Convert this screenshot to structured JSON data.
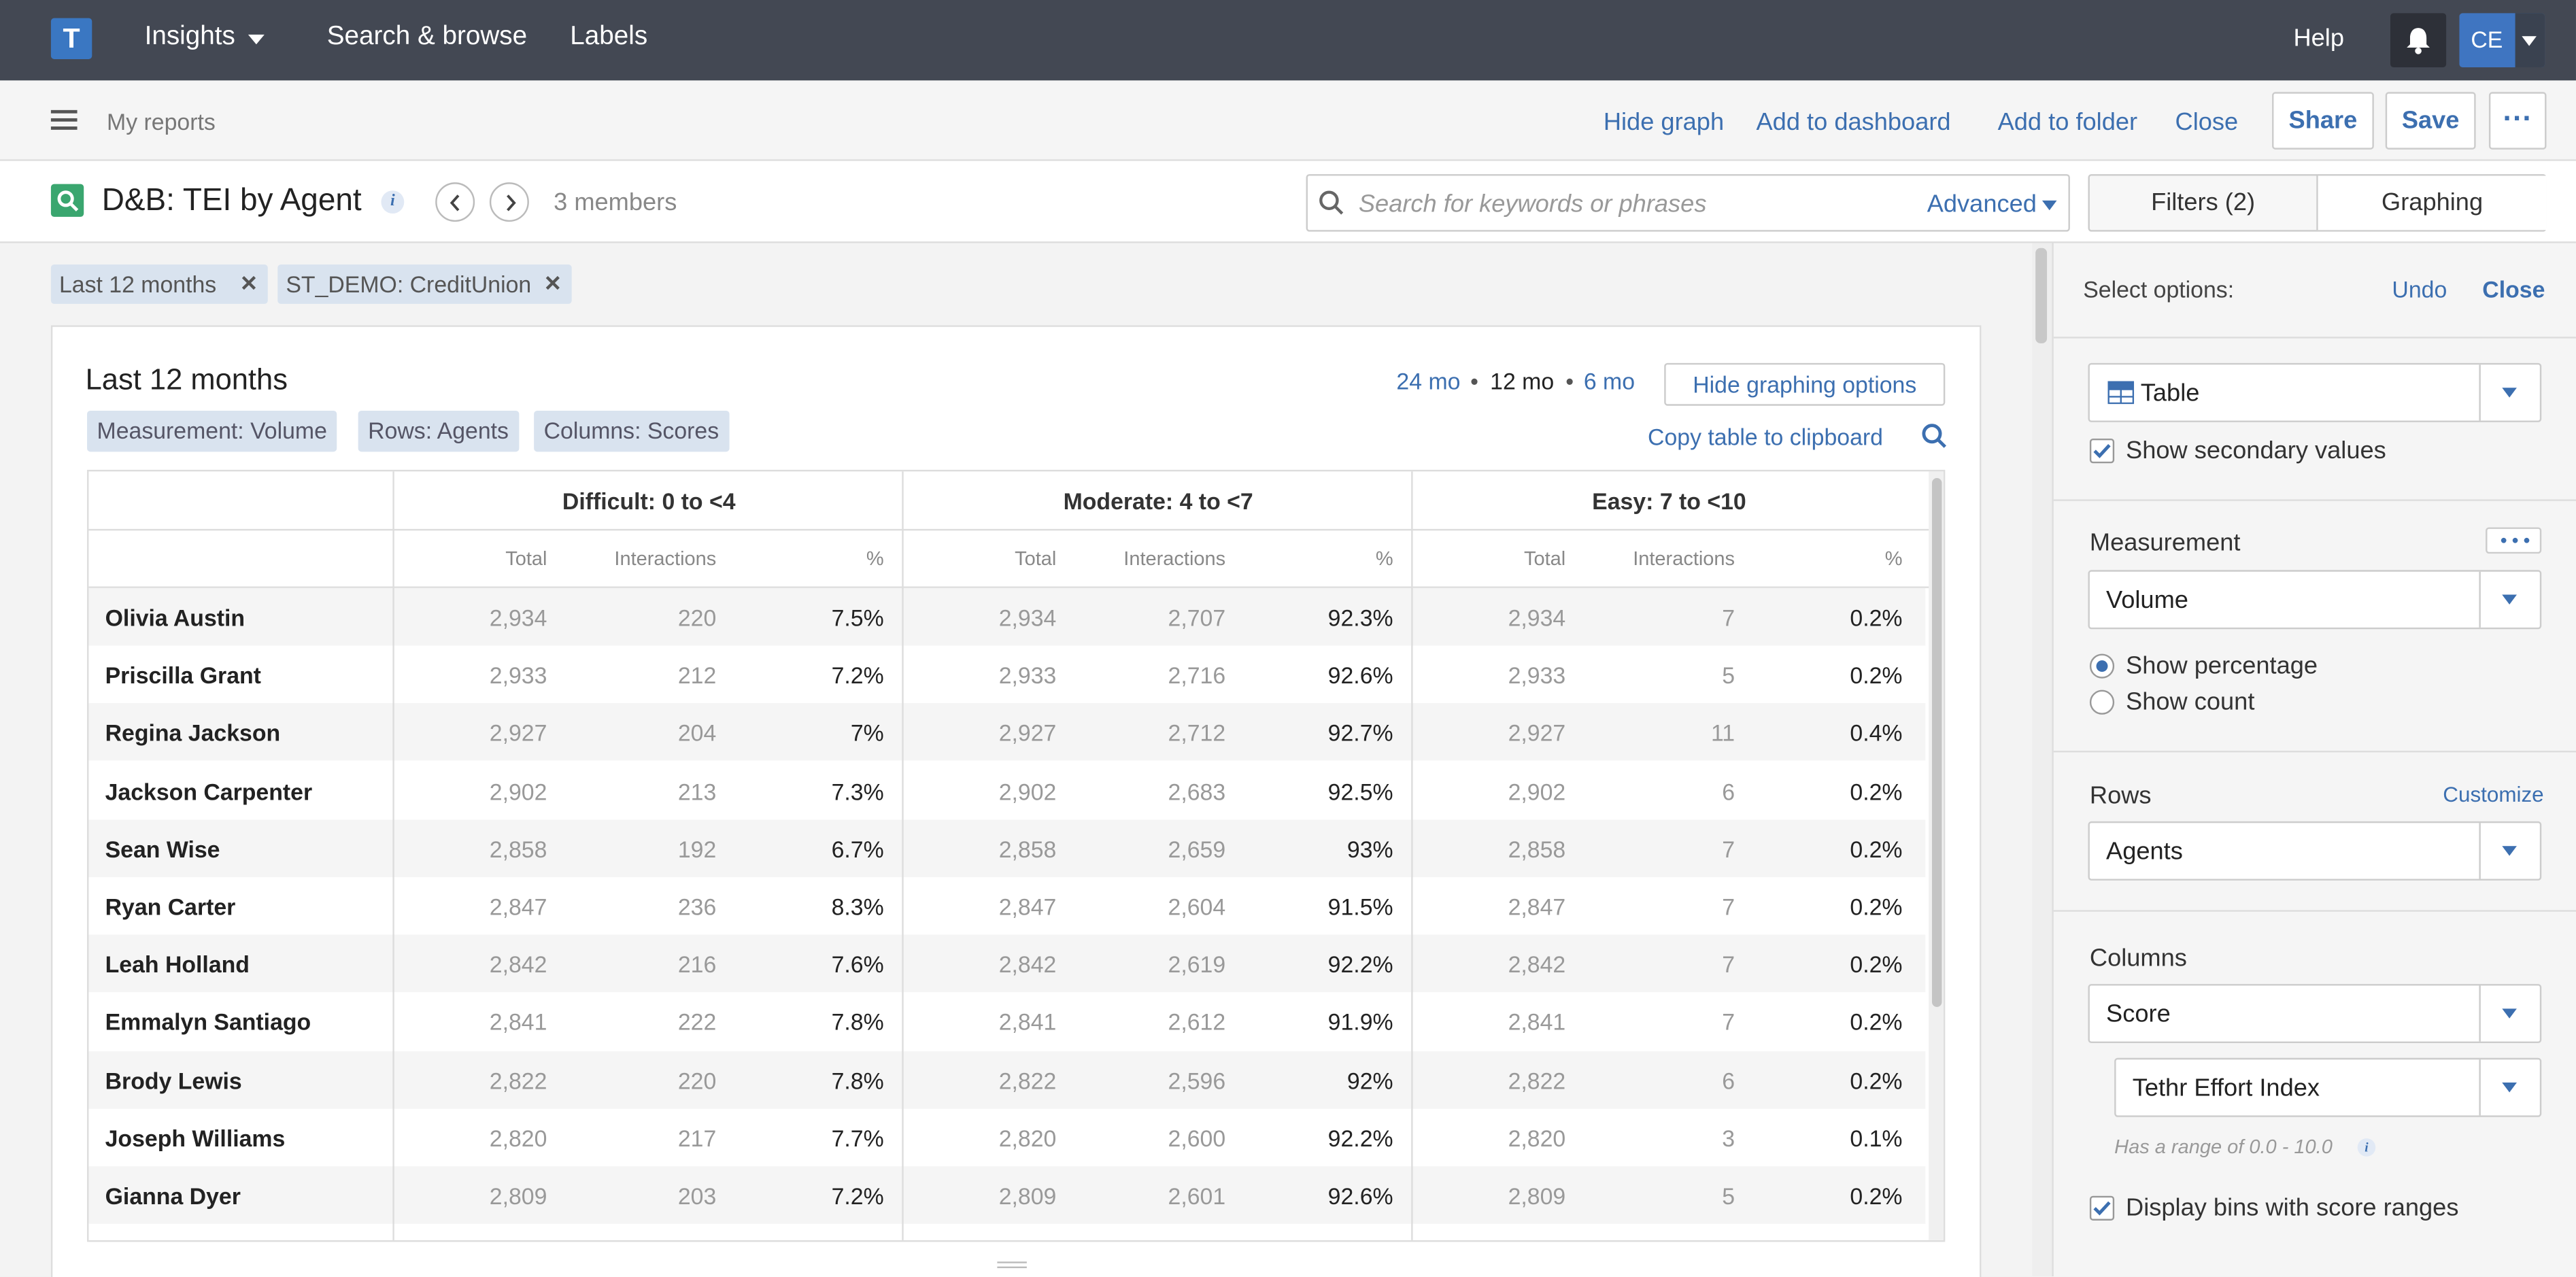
{
  "nav": {
    "logo": "T",
    "items": [
      "Insights",
      "Search & browse",
      "Labels"
    ],
    "help": "Help",
    "user_initials": "CE"
  },
  "toolbar": {
    "breadcrumb": "My reports",
    "links": [
      "Hide graph",
      "Add to dashboard",
      "Add to folder",
      "Close"
    ],
    "share": "Share",
    "save": "Save",
    "more": "···"
  },
  "titlebar": {
    "title": "D&B: TEI by Agent",
    "info": "i",
    "members": "3 members",
    "search_placeholder": "Search for keywords or phrases",
    "advanced": "Advanced",
    "tab_filters": "Filters (2)",
    "tab_graphing": "Graphing"
  },
  "chips": [
    "Last 12 months",
    "ST_DEMO: CreditUnion"
  ],
  "card": {
    "title": "Last 12 months",
    "tags": [
      "Measurement: Volume",
      "Rows: Agents",
      "Columns: Scores"
    ],
    "ranges": [
      "24 mo",
      "12 mo",
      "6 mo"
    ],
    "active_range": "12 mo",
    "hide_options": "Hide graphing options",
    "copy": "Copy table to clipboard"
  },
  "table": {
    "groups": [
      "Difficult: 0 to <4",
      "Moderate: 4 to <7",
      "Easy: 7 to <10"
    ],
    "subheaders": [
      "Total",
      "Interactions",
      "%"
    ],
    "rows": [
      {
        "name": "Olivia Austin",
        "cells": [
          "2,934",
          "220",
          "7.5%",
          "2,934",
          "2,707",
          "92.3%",
          "2,934",
          "7",
          "0.2%"
        ]
      },
      {
        "name": "Priscilla Grant",
        "cells": [
          "2,933",
          "212",
          "7.2%",
          "2,933",
          "2,716",
          "92.6%",
          "2,933",
          "5",
          "0.2%"
        ]
      },
      {
        "name": "Regina Jackson",
        "cells": [
          "2,927",
          "204",
          "7%",
          "2,927",
          "2,712",
          "92.7%",
          "2,927",
          "11",
          "0.4%"
        ]
      },
      {
        "name": "Jackson Carpenter",
        "cells": [
          "2,902",
          "213",
          "7.3%",
          "2,902",
          "2,683",
          "92.5%",
          "2,902",
          "6",
          "0.2%"
        ]
      },
      {
        "name": "Sean Wise",
        "cells": [
          "2,858",
          "192",
          "6.7%",
          "2,858",
          "2,659",
          "93%",
          "2,858",
          "7",
          "0.2%"
        ]
      },
      {
        "name": "Ryan Carter",
        "cells": [
          "2,847",
          "236",
          "8.3%",
          "2,847",
          "2,604",
          "91.5%",
          "2,847",
          "7",
          "0.2%"
        ]
      },
      {
        "name": "Leah Holland",
        "cells": [
          "2,842",
          "216",
          "7.6%",
          "2,842",
          "2,619",
          "92.2%",
          "2,842",
          "7",
          "0.2%"
        ]
      },
      {
        "name": "Emmalyn Santiago",
        "cells": [
          "2,841",
          "222",
          "7.8%",
          "2,841",
          "2,612",
          "91.9%",
          "2,841",
          "7",
          "0.2%"
        ]
      },
      {
        "name": "Brody Lewis",
        "cells": [
          "2,822",
          "220",
          "7.8%",
          "2,822",
          "2,596",
          "92%",
          "2,822",
          "6",
          "0.2%"
        ]
      },
      {
        "name": "Joseph Williams",
        "cells": [
          "2,820",
          "217",
          "7.7%",
          "2,820",
          "2,600",
          "92.2%",
          "2,820",
          "3",
          "0.1%"
        ]
      },
      {
        "name": "Gianna Dyer",
        "cells": [
          "2,809",
          "203",
          "7.2%",
          "2,809",
          "2,601",
          "92.6%",
          "2,809",
          "5",
          "0.2%"
        ]
      }
    ]
  },
  "panel": {
    "select_options": "Select options:",
    "undo": "Undo",
    "close": "Close",
    "chart_type": "Table",
    "show_secondary": "Show secondary values",
    "measurement_label": "Measurement",
    "measurement": "Volume",
    "show_percentage": "Show percentage",
    "show_count": "Show count",
    "rows_label": "Rows",
    "customize": "Customize",
    "rows_value": "Agents",
    "columns_label": "Columns",
    "columns_value": "Score",
    "index_value": "Tethr Effort Index",
    "range_hint": "Has a range of 0.0 - 10.0",
    "display_bins": "Display bins with score ranges"
  },
  "colors": {
    "nav_bg": "#434853",
    "accent": "#3c6fb0",
    "avatar": "#3f75c1",
    "search_icon": "#3aa66f"
  }
}
